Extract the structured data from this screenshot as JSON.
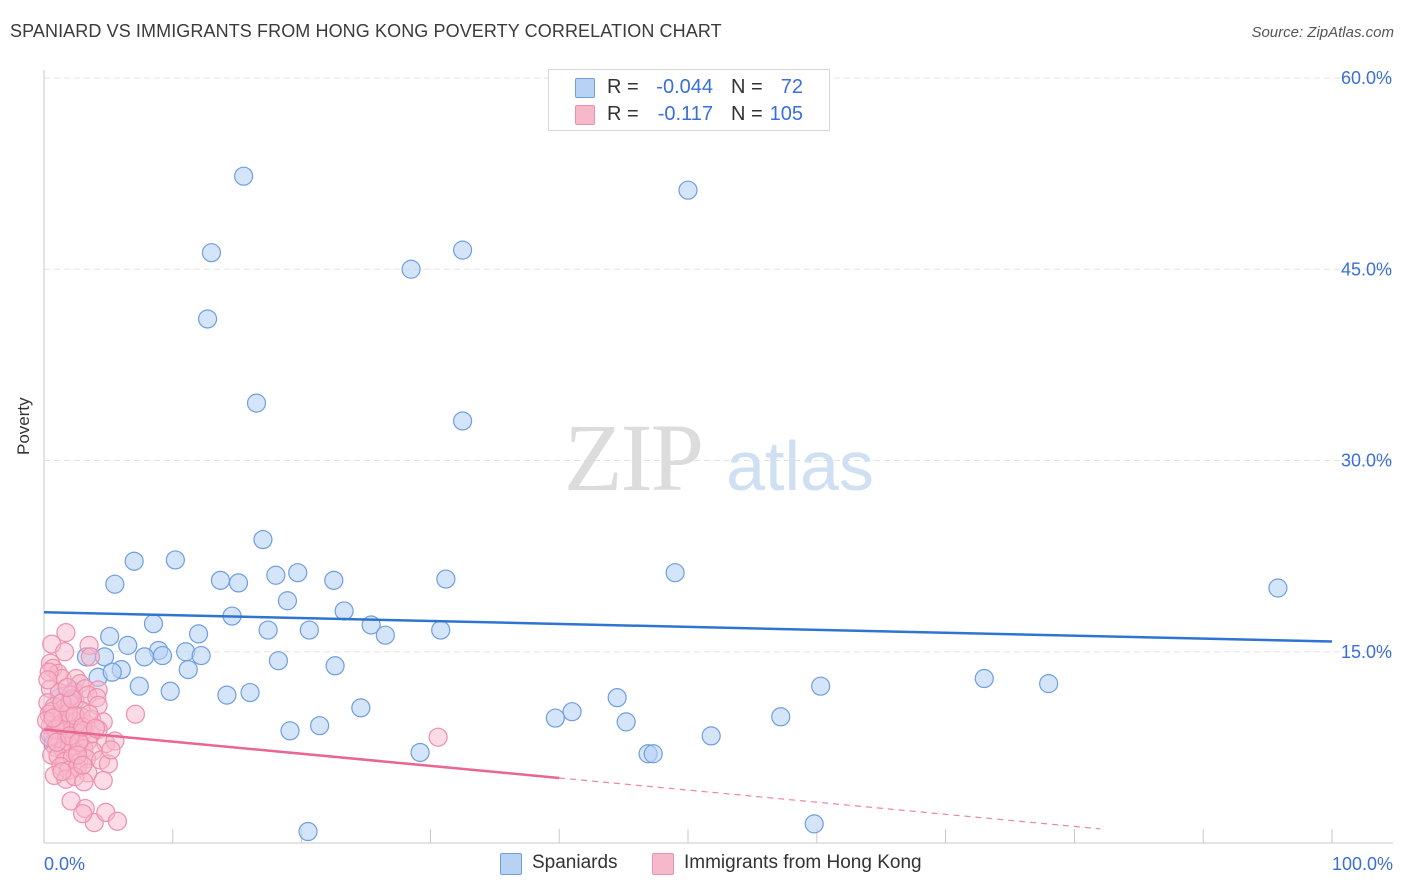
{
  "title": "SPANIARD VS IMMIGRANTS FROM HONG KONG POVERTY CORRELATION CHART",
  "source": "Source: ZipAtlas.com",
  "watermark": {
    "zip": "ZIP",
    "atlas": "atlas"
  },
  "colors": {
    "blue_fill": "#b8d2f5",
    "blue_stroke": "#6f9ee0",
    "blue_line": "#2f74d0",
    "pink_fill": "#f7b8cc",
    "pink_stroke": "#ee8fae",
    "pink_line": "#e8668f",
    "tick_label": "#3a6fd8",
    "grid": "#e3e3e3"
  },
  "legend_top": [
    {
      "r_label": "R =",
      "r_value": "-0.044",
      "n_label": "N =",
      "n_value": "72",
      "color": "#b8d2f5"
    },
    {
      "r_label": "R =",
      "r_value": "-0.117",
      "n_label": "N =",
      "n_value": "105",
      "color": "#f7b8cc"
    }
  ],
  "legend_bottom": [
    {
      "label": "Spaniards",
      "color": "#b8d2f5"
    },
    {
      "label": "Immigrants from Hong Kong",
      "color": "#f7b8cc"
    }
  ],
  "chart_data": {
    "type": "scatter",
    "xlabel": "",
    "ylabel": "Poverty",
    "xlim": [
      0,
      100
    ],
    "ylim": [
      0,
      63
    ],
    "x_ticks": [
      0,
      10,
      20,
      30,
      40,
      50,
      60,
      70,
      80,
      90,
      100
    ],
    "x_tick_labels": [
      {
        "value": 0,
        "label": "0.0%"
      },
      {
        "value": 100,
        "label": "100.0%"
      }
    ],
    "y_ticks": [
      {
        "value": 15,
        "label": "15.0%"
      },
      {
        "value": 30,
        "label": "30.0%"
      },
      {
        "value": 45,
        "label": "45.0%"
      },
      {
        "value": 60,
        "label": "60.0%"
      }
    ],
    "grid": true,
    "series": [
      {
        "name": "Spaniards",
        "color": "#b8d2f5",
        "points": [
          [
            15.5,
            52.3
          ],
          [
            50.0,
            51.2
          ],
          [
            13.0,
            46.3
          ],
          [
            32.5,
            46.5
          ],
          [
            28.5,
            45.0
          ],
          [
            12.7,
            41.1
          ],
          [
            16.5,
            34.5
          ],
          [
            32.5,
            33.1
          ],
          [
            17.0,
            23.8
          ],
          [
            7.0,
            22.1
          ],
          [
            10.2,
            22.2
          ],
          [
            5.5,
            20.3
          ],
          [
            13.7,
            20.6
          ],
          [
            15.1,
            20.4
          ],
          [
            18.0,
            21.0
          ],
          [
            19.7,
            21.2
          ],
          [
            22.5,
            20.6
          ],
          [
            31.2,
            20.7
          ],
          [
            49.0,
            21.2
          ],
          [
            95.8,
            20.0
          ],
          [
            18.9,
            19.0
          ],
          [
            23.3,
            18.2
          ],
          [
            14.6,
            17.8
          ],
          [
            8.5,
            17.2
          ],
          [
            25.4,
            17.1
          ],
          [
            17.4,
            16.7
          ],
          [
            20.6,
            16.7
          ],
          [
            30.8,
            16.7
          ],
          [
            26.5,
            16.3
          ],
          [
            12.0,
            16.4
          ],
          [
            5.1,
            16.2
          ],
          [
            6.5,
            15.5
          ],
          [
            8.9,
            15.1
          ],
          [
            11.0,
            15.0
          ],
          [
            9.2,
            14.7
          ],
          [
            12.2,
            14.7
          ],
          [
            4.7,
            14.6
          ],
          [
            3.3,
            14.6
          ],
          [
            7.8,
            14.6
          ],
          [
            18.2,
            14.3
          ],
          [
            22.6,
            13.9
          ],
          [
            6.0,
            13.6
          ],
          [
            11.2,
            13.6
          ],
          [
            4.2,
            13.0
          ],
          [
            5.3,
            13.4
          ],
          [
            73.0,
            12.9
          ],
          [
            78.0,
            12.5
          ],
          [
            60.3,
            12.3
          ],
          [
            7.4,
            12.3
          ],
          [
            9.8,
            11.9
          ],
          [
            14.2,
            11.6
          ],
          [
            16.0,
            11.8
          ],
          [
            44.5,
            11.4
          ],
          [
            2.3,
            11.9
          ],
          [
            1.2,
            11.4
          ],
          [
            2.0,
            11.1
          ],
          [
            24.6,
            10.6
          ],
          [
            41.0,
            10.3
          ],
          [
            39.7,
            9.8
          ],
          [
            57.2,
            9.9
          ],
          [
            45.2,
            9.5
          ],
          [
            21.4,
            9.2
          ],
          [
            19.1,
            8.8
          ],
          [
            51.8,
            8.4
          ],
          [
            0.5,
            8.5
          ],
          [
            1.8,
            8.8
          ],
          [
            46.9,
            7.0
          ],
          [
            47.3,
            7.0
          ],
          [
            29.2,
            7.1
          ],
          [
            59.8,
            1.5
          ],
          [
            20.5,
            0.9
          ],
          [
            0.7,
            7.8
          ]
        ]
      },
      {
        "name": "Immigrants from Hong Kong",
        "color": "#f7b8cc",
        "points": [
          [
            1.7,
            16.5
          ],
          [
            0.6,
            15.6
          ],
          [
            3.5,
            15.5
          ],
          [
            1.6,
            15.0
          ],
          [
            3.6,
            14.6
          ],
          [
            0.5,
            14.1
          ],
          [
            0.7,
            13.7
          ],
          [
            1.1,
            13.3
          ],
          [
            1.4,
            12.9
          ],
          [
            2.5,
            12.9
          ],
          [
            2.8,
            12.5
          ],
          [
            3.2,
            12.1
          ],
          [
            4.2,
            12.0
          ],
          [
            0.5,
            12.1
          ],
          [
            1.2,
            11.8
          ],
          [
            2.1,
            11.6
          ],
          [
            2.4,
            11.2
          ],
          [
            3.4,
            11.6
          ],
          [
            4.1,
            11.4
          ],
          [
            0.3,
            11.0
          ],
          [
            0.8,
            10.7
          ],
          [
            1.5,
            10.5
          ],
          [
            2.0,
            10.9
          ],
          [
            2.9,
            10.4
          ],
          [
            4.2,
            10.8
          ],
          [
            7.1,
            10.1
          ],
          [
            0.4,
            10.1
          ],
          [
            0.9,
            9.9
          ],
          [
            1.3,
            9.7
          ],
          [
            1.8,
            9.4
          ],
          [
            2.1,
            9.8
          ],
          [
            2.5,
            9.5
          ],
          [
            2.9,
            9.9
          ],
          [
            3.3,
            9.3
          ],
          [
            3.7,
            9.7
          ],
          [
            4.6,
            9.5
          ],
          [
            0.5,
            9.2
          ],
          [
            1.0,
            9.0
          ],
          [
            1.5,
            8.7
          ],
          [
            2.2,
            8.9
          ],
          [
            2.7,
            8.6
          ],
          [
            3.1,
            8.8
          ],
          [
            3.6,
            8.5
          ],
          [
            4.2,
            8.9
          ],
          [
            0.7,
            8.4
          ],
          [
            1.2,
            8.2
          ],
          [
            1.7,
            8.0
          ],
          [
            2.3,
            8.1
          ],
          [
            2.8,
            7.8
          ],
          [
            3.4,
            8.0
          ],
          [
            4.8,
            7.8
          ],
          [
            5.5,
            8.0
          ],
          [
            0.9,
            7.5
          ],
          [
            1.5,
            7.3
          ],
          [
            2.0,
            7.6
          ],
          [
            2.6,
            7.1
          ],
          [
            3.1,
            7.4
          ],
          [
            3.8,
            7.2
          ],
          [
            0.6,
            6.9
          ],
          [
            1.1,
            6.8
          ],
          [
            1.6,
            6.4
          ],
          [
            2.2,
            6.7
          ],
          [
            2.7,
            6.3
          ],
          [
            3.3,
            6.6
          ],
          [
            4.4,
            6.5
          ],
          [
            5.0,
            6.2
          ],
          [
            1.3,
            6.0
          ],
          [
            1.9,
            5.7
          ],
          [
            2.6,
            5.9
          ],
          [
            3.4,
            5.5
          ],
          [
            0.8,
            5.3
          ],
          [
            1.7,
            5.0
          ],
          [
            2.4,
            5.2
          ],
          [
            3.1,
            4.8
          ],
          [
            4.6,
            4.9
          ],
          [
            0.4,
            13.4
          ],
          [
            0.3,
            12.8
          ],
          [
            0.6,
            10.3
          ],
          [
            0.2,
            9.6
          ],
          [
            0.9,
            8.9
          ],
          [
            0.4,
            8.3
          ],
          [
            1.0,
            7.9
          ],
          [
            1.3,
            9.3
          ],
          [
            1.9,
            10.2
          ],
          [
            2.4,
            10.0
          ],
          [
            2.0,
            8.4
          ],
          [
            2.7,
            7.9
          ],
          [
            3.0,
            9.1
          ],
          [
            3.5,
            10.1
          ],
          [
            4.0,
            9.0
          ],
          [
            0.7,
            9.8
          ],
          [
            1.4,
            11.0
          ],
          [
            2.2,
            11.3
          ],
          [
            1.8,
            12.2
          ],
          [
            2.6,
            6.9
          ],
          [
            3.0,
            6.1
          ],
          [
            1.4,
            5.6
          ],
          [
            2.1,
            3.3
          ],
          [
            3.2,
            2.7
          ],
          [
            3.9,
            1.6
          ],
          [
            4.8,
            2.4
          ],
          [
            5.7,
            1.7
          ],
          [
            3.0,
            2.3
          ],
          [
            30.6,
            8.3
          ],
          [
            5.2,
            7.3
          ]
        ]
      }
    ],
    "trend_lines": [
      {
        "series": "Spaniards",
        "x": [
          0,
          100
        ],
        "y": [
          18.1,
          15.8
        ],
        "dashed_from": null
      },
      {
        "series": "Immigrants from Hong Kong",
        "x": [
          0,
          100
        ],
        "y": [
          8.9,
          -0.6
        ],
        "solid_until": 40
      }
    ]
  }
}
